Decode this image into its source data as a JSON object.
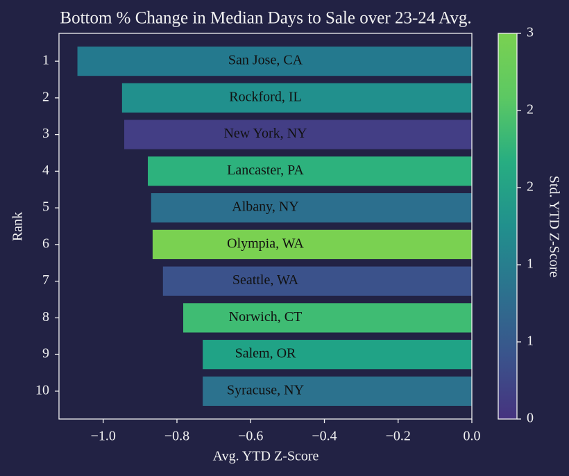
{
  "chart_data": {
    "type": "barh",
    "title": "Bottom % Change in Median Days to Sale over 23-24 Avg.",
    "xlabel": "Avg. YTD Z-Score",
    "ylabel": "Rank",
    "categories": [
      "1",
      "2",
      "3",
      "4",
      "5",
      "6",
      "7",
      "8",
      "9",
      "10"
    ],
    "values": [
      -1.07,
      -0.949,
      -0.943,
      -0.879,
      -0.87,
      -0.866,
      -0.838,
      -0.783,
      -0.73,
      -0.73
    ],
    "bar_labels": [
      "San Jose, CA",
      "Rockford, IL",
      "New York, NY",
      "Lancaster, PA",
      "Albany, NY",
      "Olympia, WA",
      "Seattle, WA",
      "Norwich, CT",
      "Salem, OR",
      "Syracuse, NY"
    ],
    "colors": [
      "#24798e",
      "#21908d",
      "#433e85",
      "#2db27d",
      "#2c6f8e",
      "#7ad151",
      "#3b528b",
      "#3fbc73",
      "#20a386",
      "#2c728e"
    ],
    "xlim": [
      -1.12,
      0
    ],
    "xticks": [
      {
        "value": -1.0,
        "label": "−1.0"
      },
      {
        "value": -0.8,
        "label": "−0.8"
      },
      {
        "value": -0.6,
        "label": "−0.6"
      },
      {
        "value": -0.4,
        "label": "−0.4"
      },
      {
        "value": -0.2,
        "label": "−0.2"
      },
      {
        "value": 0,
        "label": "0.0"
      }
    ],
    "colorbar": {
      "label": "Std. YTD Z-Score",
      "lim": [
        0,
        3
      ],
      "ticks": [
        0,
        {
          "value": 0.6,
          "label": "1"
        },
        {
          "value": 1.2,
          "label": "1"
        },
        {
          "value": 1.8,
          "label": "2"
        },
        {
          "value": 2.4,
          "label": "2"
        },
        3
      ],
      "colors": [
        "#46337f",
        "#3a548c",
        "#2c728e",
        "#21908d",
        "#27ad81",
        "#5cc863",
        "#7ad151"
      ]
    }
  }
}
